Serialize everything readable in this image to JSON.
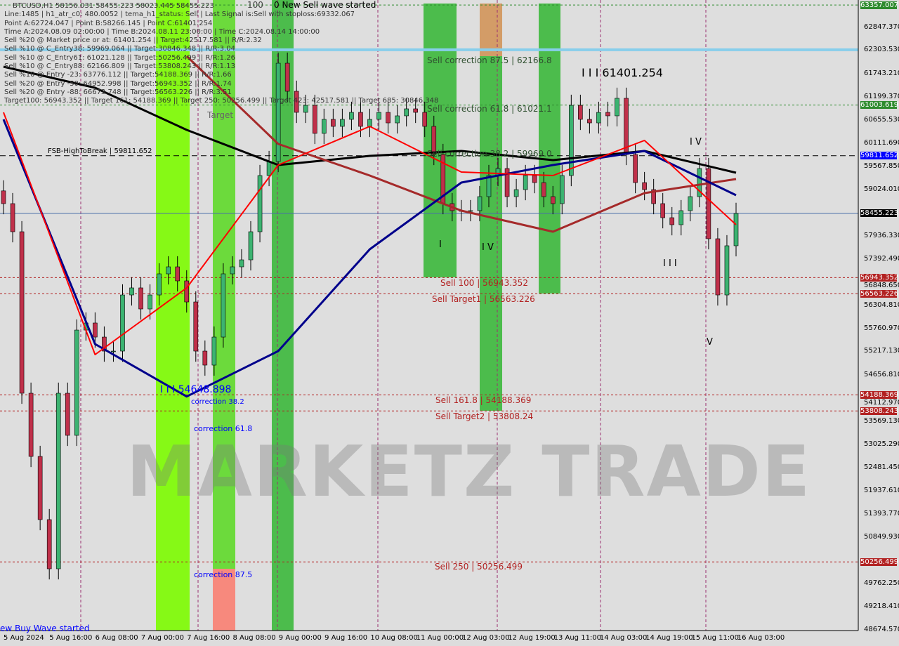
{
  "header": {
    "title_line": "BTCUSD,H1  58156.031 58455.223 58023.445 58455.223",
    "lines": [
      "Line:1485 | h1_atr_c0: 480.0052 | tema_h1_status: Sell | Last Signal is:Sell with stoploss:69332.067",
      "Point A:62724.047 | Point B:58266.145 | Point C:61401.254",
      "Time A:2024.08.09 02:00:00 | Time B:2024.08.11 23:00:00 | Time C:2024.08.14 14:00:00",
      "Sell %20 @ Market price or at: 61401.254 || Target:42517.581 || R/R:2.32",
      "Sell %10 @ C_Entry38: 59969.064 || Target:30846.348 || R/R:3.04",
      "Sell %10 @ C_Entry61: 61021.128 || Target:50256.499 || R/R:1.26",
      "Sell %10 @ C_Entry88: 62166.809 || Target:53808.243 || R/R:1.13",
      "Sell %10 @ Entry -23: 63776.112 || Target:54188.369 || R/R:1.66",
      "Sell %20 @ Entry -50: 64952.998 || Target:56943.352 || R/R:1.74",
      "Sell %20 @ Entry -88: 66673.748 || Target:56563.226 || R/R:3.51",
      "Target100: 56943.352 || Target 161: 54188.369 || Target 250: 50256.499 || Target 423: 42517.581 || Target 685: 30846.348"
    ]
  },
  "annotations": {
    "new_sell_wave": "0 New Sell wave started",
    "wave_100": "100",
    "buy_wave": "ew Buy Wave started",
    "sell_corr_875": "Sell correction 87.5 | 62166.8",
    "sell_corr_618": "Sell correction 61.8 | 61021.1",
    "sell_corr_382": "Sell correction 38.2 | 59969.0",
    "sell_100": "Sell 100 | 56943.352",
    "sell_target1": "Sell Target1 | 56563.226",
    "sell_1618": "Sell 161.8 | 54188.369",
    "sell_target2": "Sell Target2 | 53808.24",
    "sell_250": "Sell  250 | 50256.499",
    "fsb": "FSB-HighToBreak | 59811.652",
    "point_c": "I I I 61401.254",
    "point_low": "I I I 54648.898",
    "corr_382": "correction 38.2",
    "corr_618": "correction 61.8",
    "corr_875": "correction 87.5",
    "target_small": "Target",
    "wave_iv": "I V",
    "wave_v": "V",
    "wave_i": "I",
    "wave_iv2": "I V",
    "wave_iii": "I I I",
    "watermark": "MARKETZ TRADE"
  },
  "chart_data": {
    "type": "candlestick",
    "symbol": "BTCUSD",
    "timeframe": "H1",
    "ylim": [
      48674.57,
      63357.007
    ],
    "start": "2024-08-05 00:00",
    "end": "2024-08-16 04:00",
    "close": [
      58685,
      58024,
      54225,
      52738,
      51252,
      50095,
      54225,
      53234,
      55711,
      55877,
      55546,
      55216,
      55216,
      56537,
      56703,
      56207,
      56537,
      57033,
      57198,
      56868,
      56372,
      55216,
      54886,
      55546,
      57033,
      57198,
      57363,
      58024,
      59346,
      59676,
      61988,
      61328,
      60832,
      60997,
      60337,
      60667,
      60502,
      60667,
      60832,
      60502,
      60667,
      60832,
      60584,
      60750,
      60915,
      60832,
      60502,
      59841,
      58685,
      58520,
      58520,
      58520,
      58850,
      59346,
      59511,
      58850,
      59015,
      59346,
      59180,
      58850,
      58685,
      59346,
      60997,
      60667,
      60584,
      60832,
      60750,
      61163,
      59841,
      59180,
      59015,
      58685,
      58354,
      58189,
      58520,
      58850,
      59511,
      57859,
      56537,
      57694,
      58455
    ],
    "moving_averages": [
      {
        "color": "#000000",
        "values": [
          61906,
          61410,
          60419,
          59593,
          59808,
          59924,
          59709,
          59924,
          59412
        ]
      },
      {
        "color": "#a52a2a",
        "values": [
          null,
          null,
          62154,
          60089,
          59346,
          58520,
          58024,
          58933,
          59263
        ]
      },
      {
        "color": "#00008b",
        "values": [
          60667,
          55381,
          54148,
          55216,
          57611,
          59180,
          59593,
          59924,
          58883
        ]
      },
      {
        "color": "#ff0000",
        "values": [
          60832,
          55133,
          56703,
          59593,
          60502,
          59428,
          59346,
          60171,
          58189
        ]
      }
    ],
    "price_levels": [
      {
        "price": 63357.007,
        "label": "63357.007",
        "color": "#2e8b2e",
        "style": "dashed"
      },
      {
        "price": 62303.53,
        "label": "",
        "color": "#87ceeb",
        "style": "thick"
      },
      {
        "price": 61003.619,
        "label": "61003.619",
        "color": "#2e8b2e",
        "style": "dashed"
      },
      {
        "price": 59811.652,
        "label": "59811.652",
        "color": "#0000ff",
        "style": "dashed-black"
      },
      {
        "price": 58455.223,
        "label": "58455.223",
        "color": "#000000",
        "style": "current"
      },
      {
        "price": 56943.352,
        "label": "56943.352",
        "color": "#b22222",
        "style": "dashed"
      },
      {
        "price": 56563.226,
        "label": "56563.226",
        "color": "#b22222",
        "style": "dashed"
      },
      {
        "price": 54188.369,
        "label": "54188.369",
        "color": "#b22222",
        "style": "dashed"
      },
      {
        "price": 53808.243,
        "label": "53808.243",
        "color": "#b22222",
        "style": "dashed"
      },
      {
        "price": 50256.499,
        "label": "50256.499",
        "color": "#b22222",
        "style": "dashed"
      }
    ],
    "y_ticks": [
      "62847.370",
      "62303.530",
      "61743.210",
      "61199.370",
      "60655.530",
      "60111.690",
      "59567.850",
      "59024.010",
      "57936.330",
      "57392.490",
      "56848.650",
      "56304.810",
      "55760.970",
      "55217.130",
      "54656.810",
      "54112.970",
      "53569.130",
      "53025.290",
      "52481.450",
      "51937.610",
      "51393.770",
      "50849.930",
      "49762.250",
      "49218.410",
      "48674.570"
    ],
    "x_ticks": [
      "5 Aug 2024",
      "5 Aug 16:00",
      "6 Aug 08:00",
      "7 Aug 00:00",
      "7 Aug 16:00",
      "8 Aug 08:00",
      "9 Aug 00:00",
      "9 Aug 16:00",
      "10 Aug 08:00",
      "11 Aug 00:00",
      "12 Aug 03:00",
      "12 Aug 19:00",
      "13 Aug 11:00",
      "14 Aug 03:00",
      "14 Aug 19:00",
      "15 Aug 11:00",
      "16 Aug 03:00"
    ]
  }
}
